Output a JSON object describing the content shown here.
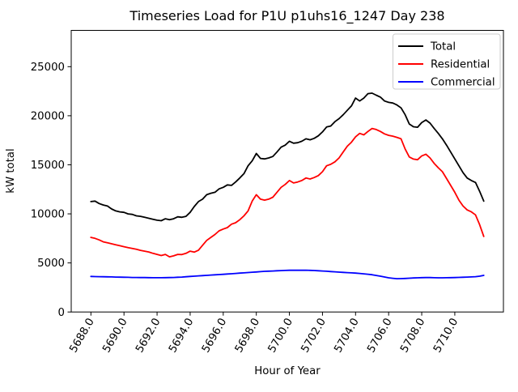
{
  "figure": {
    "background": "#ffffff",
    "spine_color": "#000000",
    "legend_border_color": "#cccccc"
  },
  "chart_data": {
    "type": "line",
    "title": "Timeseries Load for P1U p1uhs16_1247  Day 238",
    "xlabel": "Hour of Year",
    "ylabel": "kW total",
    "grid": false,
    "legend_position": "upper right",
    "xlim": [
      5686.81,
      5712.94
    ],
    "ylim": [
      0,
      28700
    ],
    "x_start": 5688.0,
    "x_step": 0.25,
    "xtick_labels": [
      "5688.0",
      "5690.0",
      "5692.0",
      "5694.0",
      "5696.0",
      "5698.0",
      "5700.0",
      "5702.0",
      "5704.0",
      "5706.0",
      "5708.0",
      "5710.0"
    ],
    "xtick_values": [
      5688,
      5690,
      5692,
      5694,
      5696,
      5698,
      5700,
      5702,
      5704,
      5706,
      5708,
      5710
    ],
    "ytick_labels": [
      "0",
      "5000",
      "10000",
      "15000",
      "20000",
      "25000"
    ],
    "ytick_values": [
      0,
      5000,
      10000,
      15000,
      20000,
      25000
    ],
    "xtick_rotation": -60,
    "series": [
      {
        "name": "Total",
        "color": "#000000",
        "values": [
          11250,
          11300,
          11050,
          10900,
          10800,
          10500,
          10300,
          10200,
          10150,
          10000,
          9950,
          9800,
          9750,
          9650,
          9550,
          9450,
          9350,
          9300,
          9500,
          9400,
          9500,
          9700,
          9650,
          9750,
          10150,
          10750,
          11250,
          11500,
          11950,
          12100,
          12200,
          12550,
          12700,
          12950,
          12900,
          13250,
          13650,
          14100,
          14900,
          15400,
          16150,
          15650,
          15600,
          15700,
          15850,
          16300,
          16800,
          17000,
          17400,
          17200,
          17250,
          17400,
          17650,
          17550,
          17700,
          17950,
          18350,
          18850,
          18950,
          19400,
          19700,
          20100,
          20550,
          21000,
          21800,
          21500,
          21800,
          22250,
          22300,
          22100,
          21900,
          21500,
          21360,
          21300,
          21100,
          20800,
          20100,
          19160,
          18880,
          18830,
          19300,
          19570,
          19250,
          18700,
          18200,
          17650,
          17000,
          16300,
          15600,
          14900,
          14200,
          13650,
          13400,
          13200,
          12300,
          11300
        ]
      },
      {
        "name": "Residential",
        "color": "#ff0000",
        "values": [
          7600,
          7500,
          7350,
          7150,
          7050,
          6950,
          6850,
          6750,
          6650,
          6550,
          6480,
          6400,
          6280,
          6200,
          6120,
          5980,
          5870,
          5750,
          5870,
          5620,
          5720,
          5870,
          5850,
          5980,
          6200,
          6100,
          6300,
          6800,
          7300,
          7600,
          7900,
          8270,
          8450,
          8600,
          8950,
          9100,
          9400,
          9800,
          10300,
          11300,
          11950,
          11500,
          11400,
          11500,
          11700,
          12200,
          12700,
          13000,
          13400,
          13150,
          13250,
          13400,
          13650,
          13550,
          13700,
          13900,
          14300,
          14900,
          15050,
          15300,
          15700,
          16300,
          16900,
          17300,
          17850,
          18200,
          18050,
          18400,
          18700,
          18600,
          18400,
          18150,
          18000,
          17920,
          17800,
          17650,
          16600,
          15800,
          15580,
          15520,
          15900,
          16080,
          15700,
          15150,
          14700,
          14300,
          13600,
          12900,
          12200,
          11400,
          10800,
          10400,
          10200,
          9900,
          8900,
          7700
        ]
      },
      {
        "name": "Commercial",
        "color": "#0000ff",
        "values": [
          3620,
          3610,
          3600,
          3590,
          3580,
          3570,
          3560,
          3550,
          3540,
          3530,
          3520,
          3515,
          3510,
          3505,
          3500,
          3495,
          3490,
          3490,
          3500,
          3510,
          3520,
          3540,
          3560,
          3590,
          3620,
          3650,
          3680,
          3705,
          3730,
          3760,
          3790,
          3815,
          3840,
          3870,
          3900,
          3930,
          3960,
          3990,
          4020,
          4050,
          4080,
          4110,
          4140,
          4160,
          4180,
          4200,
          4220,
          4235,
          4250,
          4255,
          4260,
          4255,
          4250,
          4240,
          4230,
          4205,
          4180,
          4150,
          4120,
          4090,
          4060,
          4035,
          4010,
          3985,
          3960,
          3925,
          3890,
          3845,
          3800,
          3725,
          3650,
          3565,
          3480,
          3430,
          3390,
          3400,
          3420,
          3445,
          3470,
          3485,
          3500,
          3505,
          3510,
          3495,
          3480,
          3485,
          3490,
          3500,
          3510,
          3525,
          3540,
          3555,
          3570,
          3600,
          3650,
          3730
        ]
      }
    ]
  }
}
